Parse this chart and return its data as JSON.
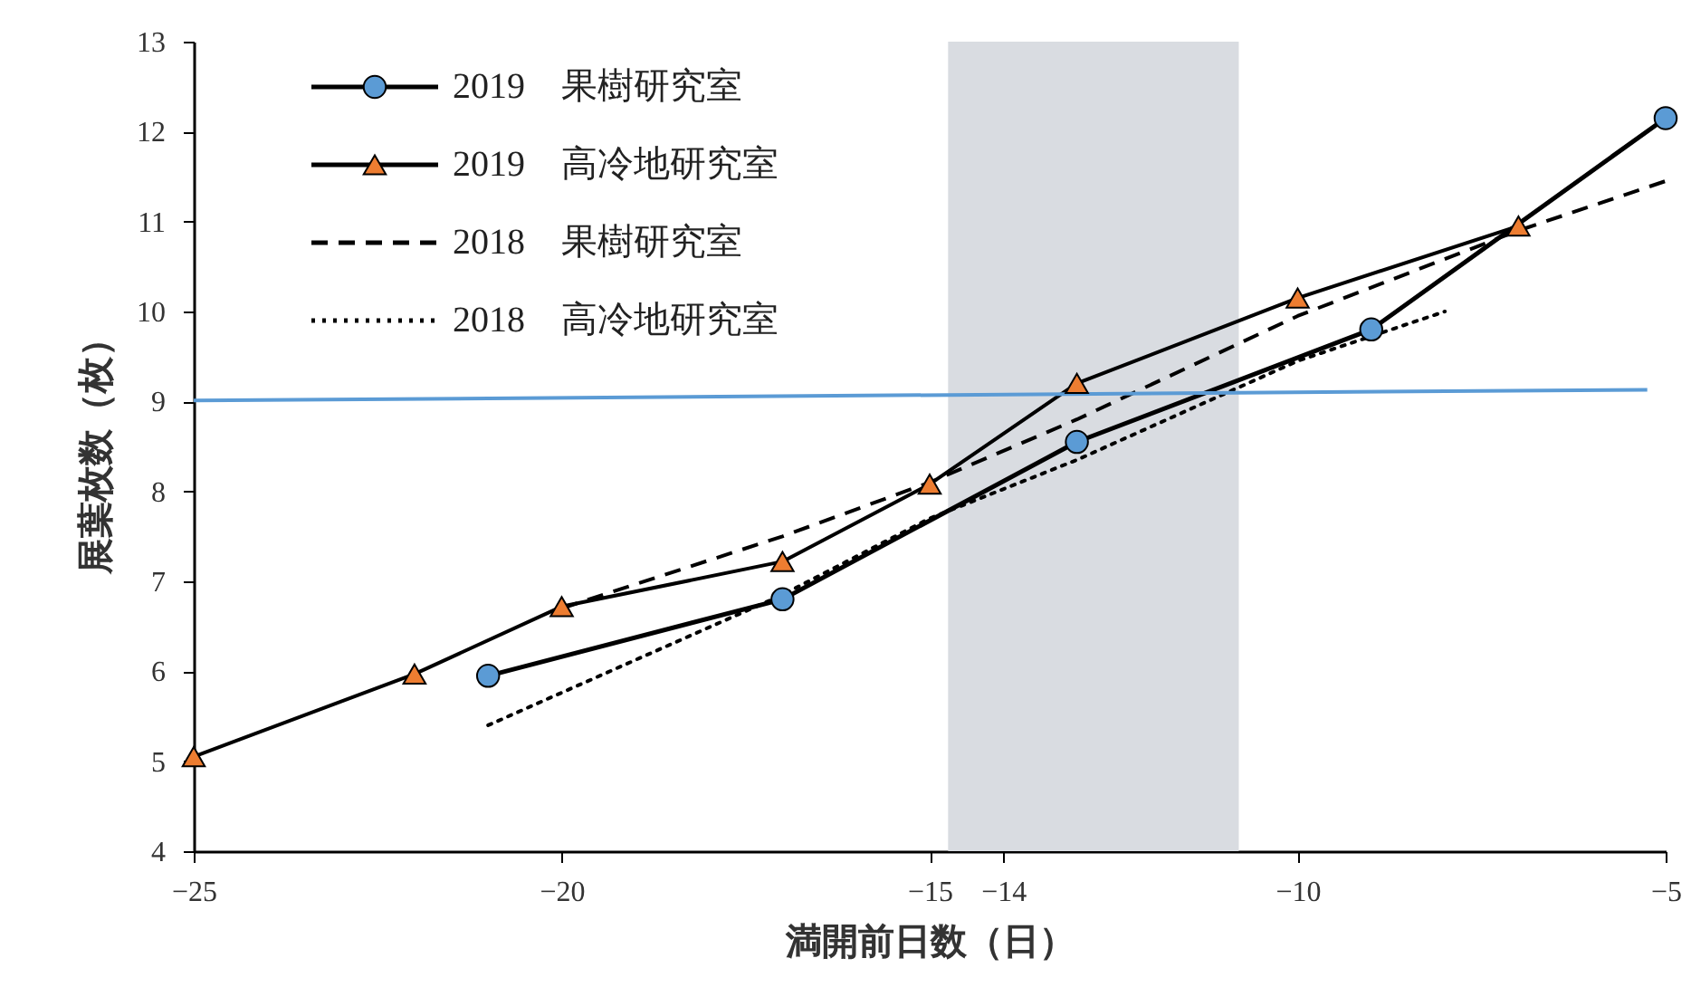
{
  "chart_data": {
    "type": "line",
    "xlabel": "満開前日数（日）",
    "ylabel": "展葉枚数（枚）",
    "xlim": [
      -25,
      -5
    ],
    "xticks": [
      -25,
      -20,
      -15,
      -14,
      -10,
      -5
    ],
    "ylim": [
      4,
      13
    ],
    "yticks": [
      4,
      5,
      6,
      7,
      8,
      9,
      10,
      11,
      12,
      13
    ],
    "grid": false,
    "legend": "top left",
    "bands": [
      {
        "axis": "x",
        "from": -14.75,
        "to": -10.8,
        "color": "#d9dce1"
      }
    ],
    "series": [
      {
        "name": "2019　果樹研究室",
        "color": "#5b9bd5",
        "marker": "circle",
        "line_style": "solid",
        "x": [
          -21,
          -17,
          -13,
          -9,
          -5
        ],
        "values": [
          5.95,
          6.8,
          8.55,
          9.8,
          12.15
        ]
      },
      {
        "name": "2019　高冷地研究室",
        "color": "#ed7d31",
        "marker": "triangle",
        "line_style": "solid",
        "x": [
          -25,
          -22,
          -20,
          -17,
          -15,
          -13,
          -10,
          -7
        ],
        "values": [
          5.05,
          5.97,
          6.72,
          7.22,
          8.08,
          9.2,
          10.15,
          10.95
        ]
      },
      {
        "name": "2018　果樹研究室",
        "color": "#000000",
        "marker": "none",
        "line_style": "dashed",
        "x": [
          -20,
          -17,
          -15,
          -13,
          -10,
          -7,
          -5
        ],
        "values": [
          6.7,
          7.5,
          8.1,
          8.8,
          9.95,
          10.9,
          11.45
        ]
      },
      {
        "name": "2018　高冷地研究室",
        "color": "#000000",
        "marker": "none",
        "line_style": "dotted",
        "x": [
          -21,
          -17,
          -15,
          -13,
          -10,
          -8
        ],
        "values": [
          5.4,
          6.85,
          7.7,
          8.35,
          9.45,
          10.0
        ]
      },
      {
        "color": "#5b9bd5",
        "marker": "none",
        "line_style": "solid",
        "x": [
          -25,
          -5.25
        ],
        "values": [
          9.01,
          9.13
        ]
      }
    ]
  }
}
